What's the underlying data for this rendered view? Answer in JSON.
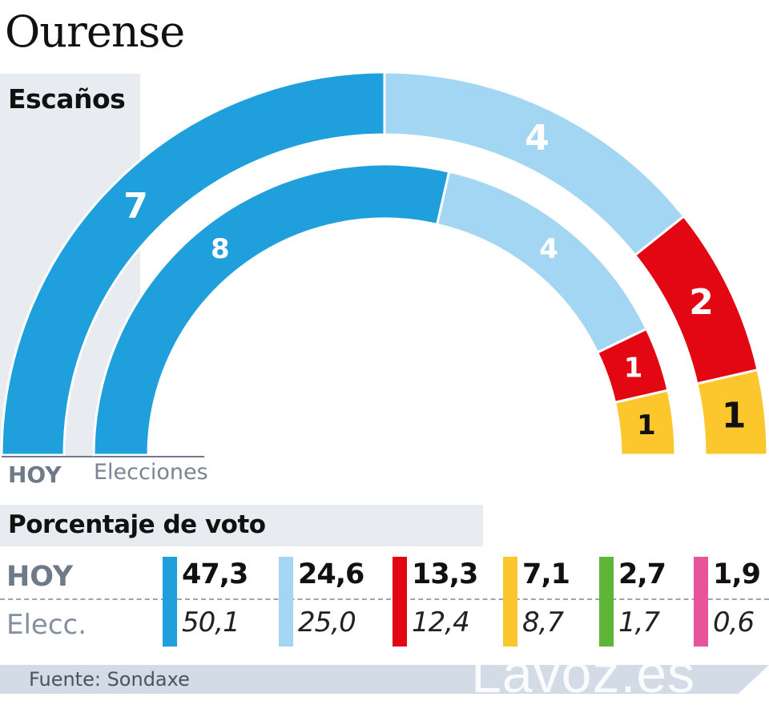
{
  "title": "Ourense",
  "colors": {
    "party_1": "#1fa0dc",
    "party_2": "#a2d6f3",
    "party_3": "#e30613",
    "party_4": "#fbc72c",
    "party_5": "#5eb537",
    "party_6": "#e6559a"
  },
  "chart_data": [
    {
      "type": "hemicycle",
      "title": "Escaños",
      "rings": [
        {
          "name": "HOY",
          "seats": [
            7,
            4,
            2,
            1
          ]
        },
        {
          "name": "Elecciones",
          "seats": [
            8,
            4,
            1,
            1
          ]
        }
      ]
    },
    {
      "type": "table",
      "title": "Porcentaje de voto",
      "rows": [
        "HOY",
        "Elecc."
      ],
      "hoy": [
        "47,3",
        "24,6",
        "13,3",
        "7,1",
        "2,7",
        "1,9"
      ],
      "elecc": [
        "50,1",
        "25,0",
        "12,4",
        "8,7",
        "1,7",
        "0,6"
      ]
    }
  ],
  "source": "Fuente: Sondaxe",
  "watermark": "Lavoz.es"
}
